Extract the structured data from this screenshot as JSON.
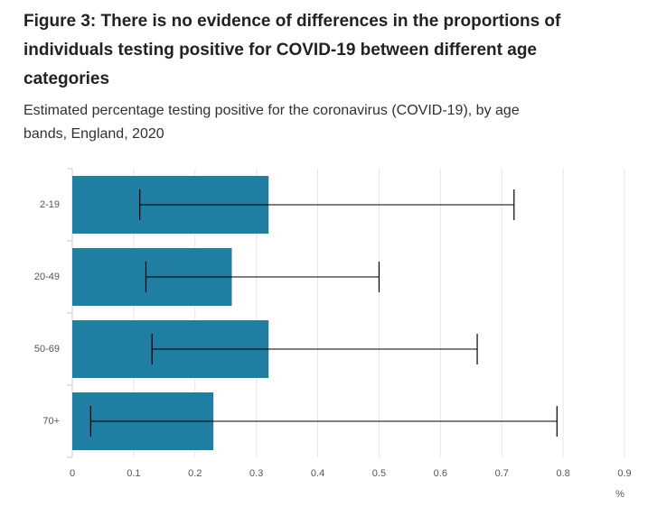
{
  "chart_data": {
    "type": "bar",
    "orientation": "horizontal",
    "title": "Figure 3: There is no evidence of differences in the proportions of individuals testing positive for COVID-19 between different age categories",
    "subtitle": "Estimated percentage testing positive for the coronavirus (COVID-19), by age bands, England, 2020",
    "x_label": "%",
    "categories": [
      "2-19",
      "20-49",
      "50-69",
      "70+"
    ],
    "values": [
      0.32,
      0.26,
      0.32,
      0.23
    ],
    "lower": [
      0.11,
      0.12,
      0.13,
      0.03
    ],
    "upper": [
      0.72,
      0.5,
      0.66,
      0.79
    ],
    "color": "#1f7ea1",
    "xlim": [
      0,
      0.9
    ],
    "xticks": [
      0,
      0.1,
      0.2,
      0.3,
      0.4,
      0.5,
      0.6,
      0.7,
      0.8,
      0.9
    ],
    "grid": true
  }
}
